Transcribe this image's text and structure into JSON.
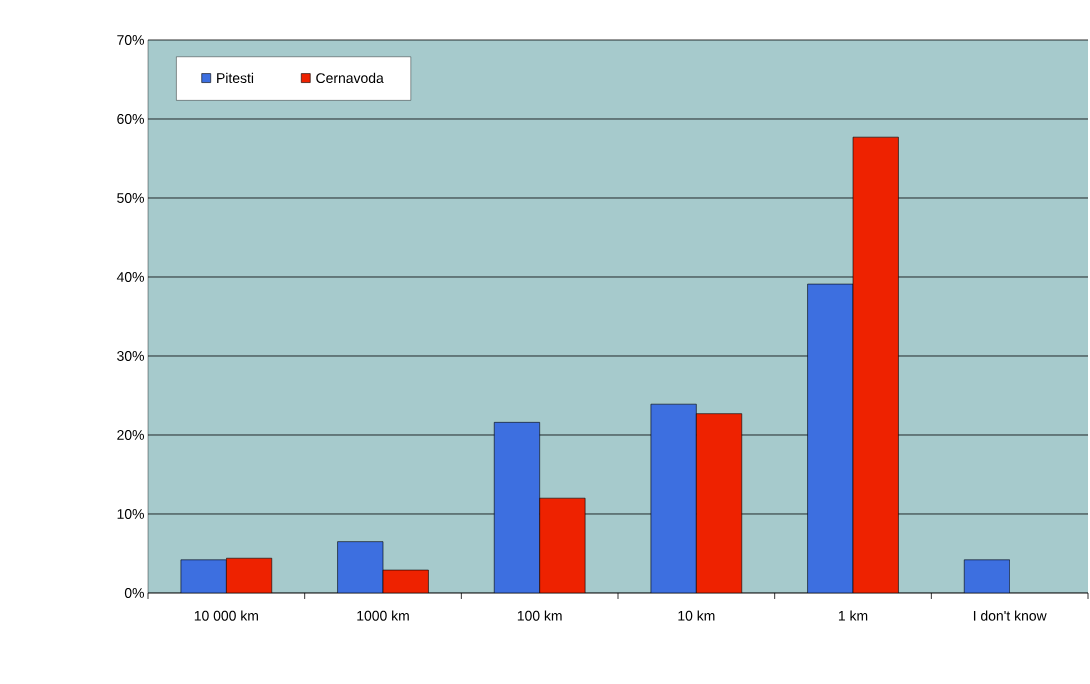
{
  "chart_data": {
    "type": "bar",
    "categories": [
      "10 000 km",
      "1000 km",
      "100 km",
      "10 km",
      "1 km",
      "I don't know"
    ],
    "series": [
      {
        "name": "Pitesti",
        "color": "#3d6fe0",
        "values": [
          4.2,
          6.5,
          21.6,
          23.9,
          39.1,
          4.2
        ]
      },
      {
        "name": "Cernavoda",
        "color": "#ee2200",
        "values": [
          4.4,
          2.9,
          12.0,
          22.7,
          57.7,
          null
        ]
      }
    ],
    "ylim": [
      0,
      70
    ],
    "yticks": [
      {
        "value": 0,
        "label": "0%"
      },
      {
        "value": 10,
        "label": "10%"
      },
      {
        "value": 20,
        "label": "20%"
      },
      {
        "value": 30,
        "label": "30%"
      },
      {
        "value": 40,
        "label": "40%"
      },
      {
        "value": 50,
        "label": "50%"
      },
      {
        "value": 60,
        "label": "60%"
      },
      {
        "value": 70,
        "label": "70%"
      }
    ],
    "grid": "y",
    "legend": "top left"
  }
}
